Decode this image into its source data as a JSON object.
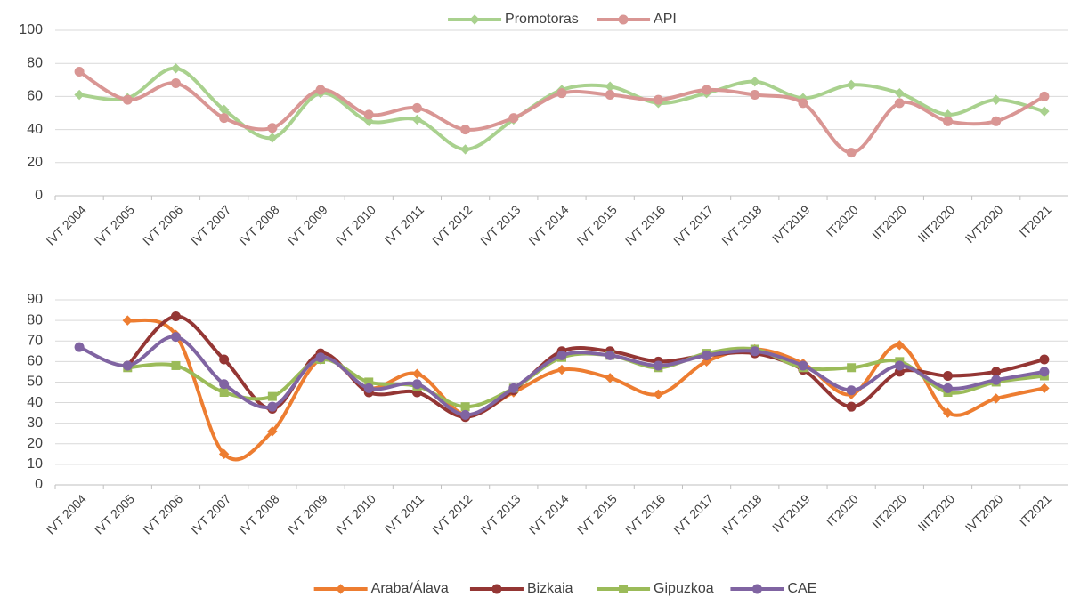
{
  "chart_data": [
    {
      "type": "line",
      "legend": "top",
      "grid": true,
      "categories": [
        "IVT 2004",
        "IVT 2005",
        "IVT 2006",
        "IVT 2007",
        "IVT 2008",
        "IVT 2009",
        "IVT 2010",
        "IVT 2011",
        "IVT 2012",
        "IVT 2013",
        "IVT 2014",
        "IVT 2015",
        "IVT 2016",
        "IVT 2017",
        "IVT 2018",
        "IVT2019",
        "IT2020",
        "IIT2020",
        "IIIT2020",
        "IVT2020",
        "IT2021"
      ],
      "ylim": [
        0,
        100
      ],
      "yticks": [
        0,
        20,
        40,
        60,
        80,
        100
      ],
      "series": [
        {
          "name": "Promotoras",
          "color": "#a9d18e",
          "marker": "diamond",
          "values": [
            61,
            59,
            77,
            52,
            35,
            62,
            45,
            46,
            28,
            46,
            64,
            66,
            56,
            62,
            69,
            59,
            67,
            62,
            49,
            58,
            51
          ]
        },
        {
          "name": "API",
          "color": "#d99694",
          "marker": "circle",
          "values": [
            75,
            58,
            68,
            47,
            41,
            64,
            49,
            53,
            40,
            47,
            62,
            61,
            58,
            64,
            61,
            56,
            26,
            56,
            45,
            45,
            60
          ]
        }
      ]
    },
    {
      "type": "line",
      "legend": "bottom",
      "grid": true,
      "categories": [
        "IVT 2004",
        "IVT 2005",
        "IVT 2006",
        "IVT 2007",
        "IVT 2008",
        "IVT 2009",
        "IVT 2010",
        "IVT 2011",
        "IVT 2012",
        "IVT 2013",
        "IVT 2014",
        "IVT 2015",
        "IVT 2016",
        "IVT 2017",
        "IVT 2018",
        "IVT2019",
        "IT2020",
        "IIT2020",
        "IIIT2020",
        "IVT2020",
        "IT2021"
      ],
      "ylim": [
        0,
        90
      ],
      "yticks": [
        0,
        10,
        20,
        30,
        40,
        50,
        60,
        70,
        80,
        90
      ],
      "series": [
        {
          "name": "Araba/Álava",
          "color": "#ed7d31",
          "marker": "diamond",
          "values": [
            null,
            80,
            73,
            15,
            26,
            61,
            47,
            54,
            34,
            45,
            56,
            52,
            44,
            60,
            66,
            59,
            44,
            68,
            35,
            42,
            47
          ]
        },
        {
          "name": "Bizkaia",
          "color": "#943634",
          "marker": "circle",
          "values": [
            null,
            58,
            82,
            61,
            37,
            64,
            45,
            45,
            33,
            46,
            65,
            65,
            60,
            63,
            64,
            56,
            38,
            55,
            53,
            55,
            61
          ]
        },
        {
          "name": "Gipuzkoa",
          "color": "#9bbb59",
          "marker": "square",
          "values": [
            null,
            57,
            58,
            45,
            43,
            61,
            50,
            48,
            38,
            47,
            62,
            63,
            57,
            64,
            66,
            57,
            57,
            60,
            45,
            50,
            53
          ]
        },
        {
          "name": "CAE",
          "color": "#8064a2",
          "marker": "circle",
          "values": [
            67,
            58,
            72,
            49,
            38,
            62,
            47,
            49,
            34,
            47,
            63,
            63,
            58,
            63,
            65,
            58,
            46,
            58,
            47,
            51,
            55
          ]
        }
      ]
    }
  ]
}
